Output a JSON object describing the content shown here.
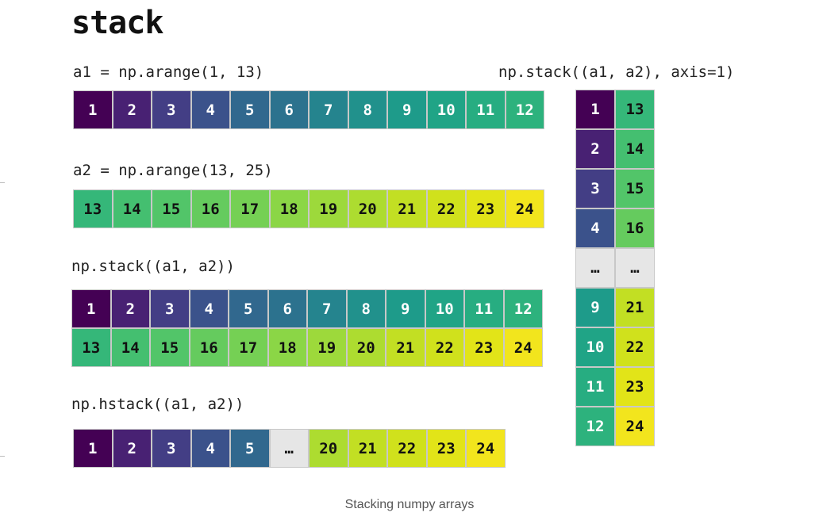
{
  "title": "stack",
  "caption": "Stacking numpy arrays",
  "labels": {
    "a1": "a1 = np.arange(1, 13)",
    "a2": "a2 = np.arange(13, 25)",
    "stack": "np.stack((a1, a2))",
    "hstack": "np.hstack((a1, a2))",
    "stack_axis1": "np.stack((a1, a2), axis=1)"
  },
  "colors": {
    "1": "#440154",
    "2": "#482173",
    "3": "#433e85",
    "4": "#3b528b",
    "5": "#31688e",
    "6": "#2c728e",
    "7": "#25848e",
    "8": "#21918c",
    "9": "#1e9b8a",
    "10": "#20a486",
    "11": "#27ad81",
    "12": "#2db27d",
    "13": "#35b779",
    "14": "#44bf70",
    "15": "#52c569",
    "16": "#65cb5e",
    "17": "#75d054",
    "18": "#8bd646",
    "19": "#9dd93b",
    "20": "#addc30",
    "21": "#c2df23",
    "22": "#d0e11c",
    "23": "#e2e418",
    "24": "#f2e51d",
    "ellipsis": "#e6e6e6"
  },
  "a1": [
    "1",
    "2",
    "3",
    "4",
    "5",
    "6",
    "7",
    "8",
    "9",
    "10",
    "11",
    "12"
  ],
  "a2": [
    "13",
    "14",
    "15",
    "16",
    "17",
    "18",
    "19",
    "20",
    "21",
    "22",
    "23",
    "24"
  ],
  "stack_rows": [
    [
      "1",
      "2",
      "3",
      "4",
      "5",
      "6",
      "7",
      "8",
      "9",
      "10",
      "11",
      "12"
    ],
    [
      "13",
      "14",
      "15",
      "16",
      "17",
      "18",
      "19",
      "20",
      "21",
      "22",
      "23",
      "24"
    ]
  ],
  "hstack": [
    "1",
    "2",
    "3",
    "4",
    "5",
    "…",
    "20",
    "21",
    "22",
    "23",
    "24"
  ],
  "stack_axis1": [
    [
      "1",
      "13"
    ],
    [
      "2",
      "14"
    ],
    [
      "3",
      "15"
    ],
    [
      "4",
      "16"
    ],
    [
      "…",
      "…"
    ],
    [
      "9",
      "21"
    ],
    [
      "10",
      "22"
    ],
    [
      "11",
      "23"
    ],
    [
      "12",
      "24"
    ]
  ]
}
